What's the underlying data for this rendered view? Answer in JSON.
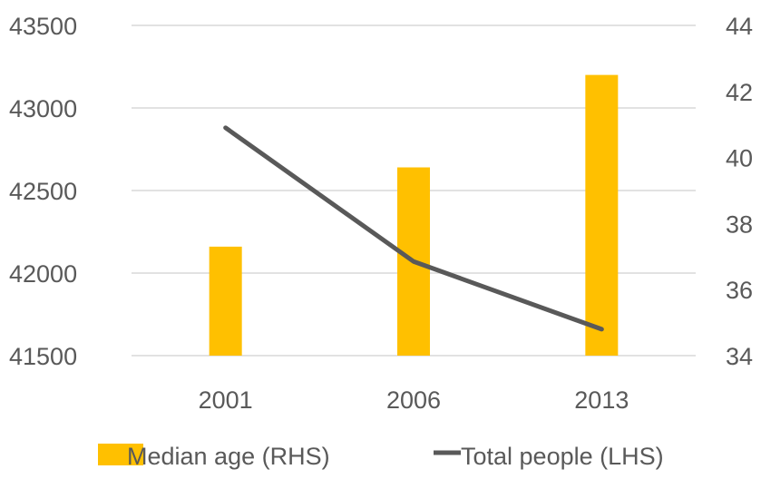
{
  "chart_data": {
    "type": "bar",
    "categories": [
      "2001",
      "2006",
      "2013"
    ],
    "series": [
      {
        "name": "Median age (RHS)",
        "type": "bar",
        "axis": "right",
        "values": [
          37.3,
          39.7,
          42.5
        ],
        "color": "#FFC000"
      },
      {
        "name": "Total people (LHS)",
        "type": "line",
        "axis": "left",
        "values": [
          42880,
          42070,
          41660
        ],
        "color": "#595959"
      }
    ],
    "y_left": {
      "ticks": [
        "41500",
        "42000",
        "42500",
        "43000",
        "43500"
      ],
      "ylim": [
        41500,
        43500
      ]
    },
    "y_right": {
      "ticks": [
        "34",
        "36",
        "38",
        "40",
        "42",
        "44"
      ],
      "ylim": [
        34,
        44
      ]
    },
    "grid": true,
    "legend_position": "bottom"
  }
}
